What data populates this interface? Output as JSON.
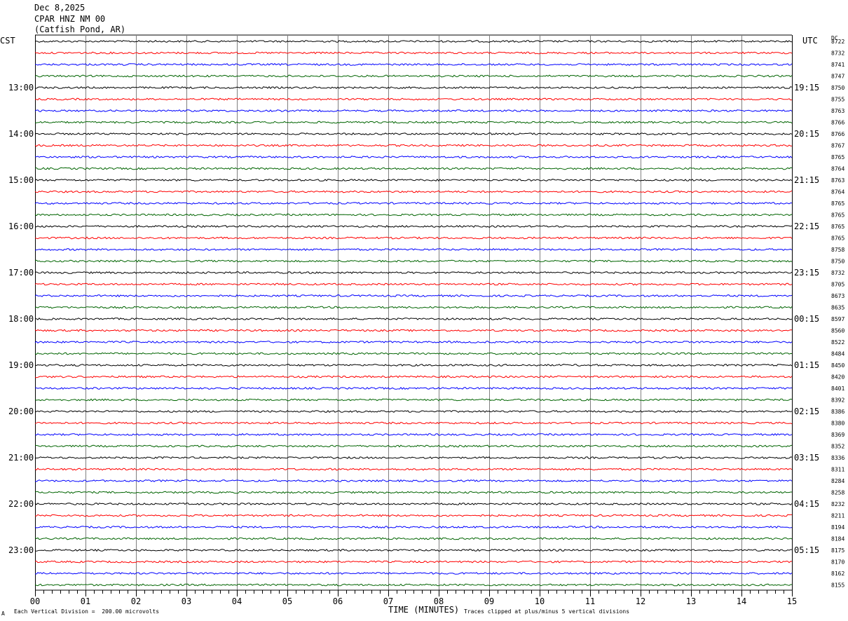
{
  "header": {
    "date": "Dec 8,2025",
    "station": "CPAR HNZ NM 00",
    "location": "(Catfish Pond, AR)"
  },
  "left_timezone": "CST",
  "right_timezone": "UTC",
  "dc_label": "DC",
  "footer": {
    "scale_note": "Each Vertical Division =  200.00 microvolts",
    "xlabel": "TIME (MINUTES)",
    "clip_note": "Traces clipped at plus/minus 5 vertical divisions",
    "corner_mark": "A"
  },
  "colors": {
    "trace_cycle": [
      "#000000",
      "#ff0000",
      "#0000ff",
      "#006400"
    ],
    "grid": "#808080"
  },
  "chart_data": {
    "type": "line",
    "title": "CPAR HNZ NM 00",
    "xlabel": "TIME (MINUTES)",
    "x_range": [
      0,
      15
    ],
    "x_ticks": [
      "00",
      "01",
      "02",
      "03",
      "04",
      "05",
      "06",
      "07",
      "08",
      "09",
      "10",
      "11",
      "12",
      "13",
      "14",
      "15"
    ],
    "left_hour_labels": [
      "13:00",
      "14:00",
      "15:00",
      "16:00",
      "17:00",
      "18:00",
      "19:00",
      "20:00",
      "21:00",
      "22:00",
      "23:00"
    ],
    "right_hour_labels": [
      "19:15",
      "20:15",
      "21:15",
      "22:15",
      "23:15",
      "00:15",
      "01:15",
      "02:15",
      "03:15",
      "04:15",
      "05:15"
    ],
    "hour_label_first_row": 4,
    "rows_per_hour": 4,
    "dc_offsets": [
      "8722",
      "8732",
      "8741",
      "8747",
      "8750",
      "8755",
      "8763",
      "8766",
      "8766",
      "8767",
      "8765",
      "8764",
      "8763",
      "8764",
      "8765",
      "8765",
      "8765",
      "8765",
      "8758",
      "8750",
      "8732",
      "8705",
      "8673",
      "8635",
      "8597",
      "8560",
      "8522",
      "8484",
      "8450",
      "8420",
      "8401",
      "8392",
      "8386",
      "8380",
      "8369",
      "8352",
      "8336",
      "8311",
      "8284",
      "8258",
      "8232",
      "8211",
      "8194",
      "8184",
      "8175",
      "8170",
      "8162",
      "8155"
    ],
    "grid": true
  }
}
